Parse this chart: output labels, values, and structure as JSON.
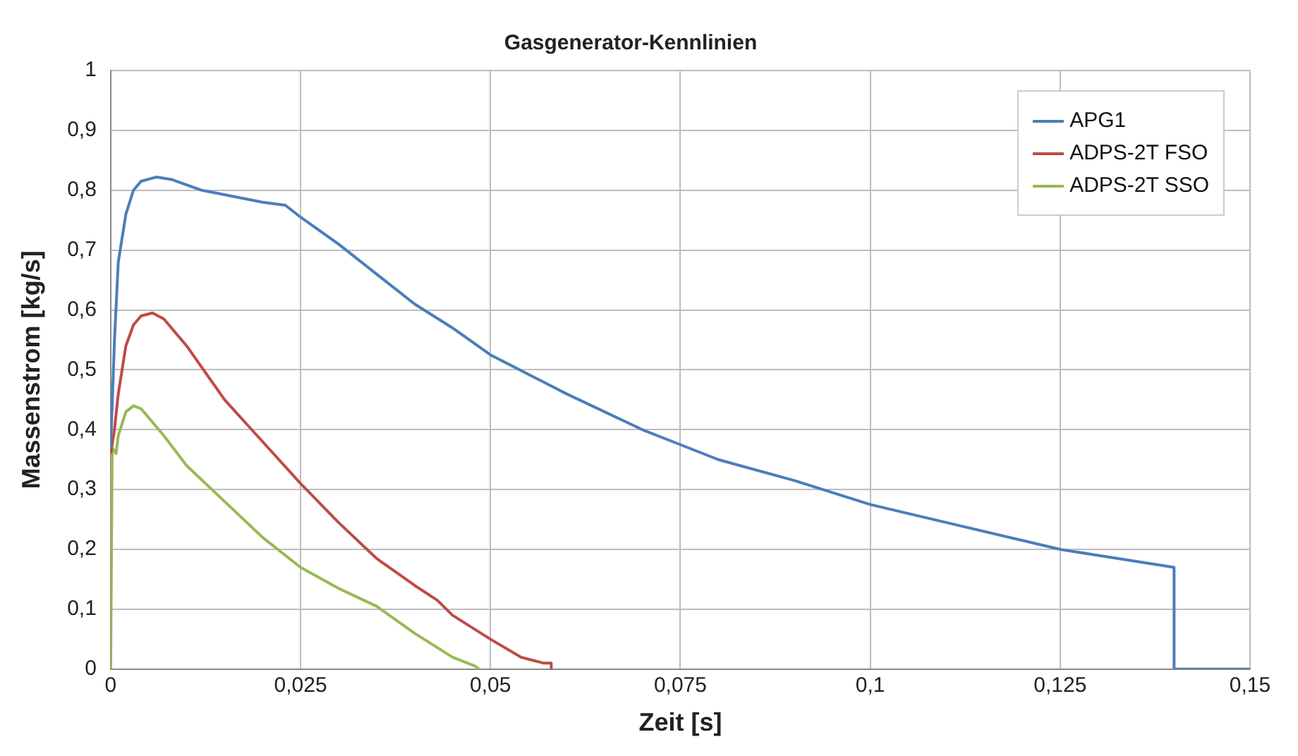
{
  "chart_data": {
    "type": "line",
    "title": "Gasgenerator-Kennlinien",
    "xlabel": "Zeit [s]",
    "ylabel": "Massenstrom [kg/s]",
    "xlim": [
      0,
      0.15
    ],
    "xticks": [
      0,
      {
        "value": 0.025,
        "label": "0,025"
      },
      {
        "value": 0.05,
        "label": "0,05"
      },
      {
        "value": 0.075,
        "label": "0,075"
      },
      {
        "value": 0.1,
        "label": "0,1"
      },
      {
        "value": 0.125,
        "label": "0,125"
      },
      {
        "value": 0.15,
        "label": "0,15"
      }
    ],
    "ylim": [
      0,
      1
    ],
    "yticks": [
      0,
      {
        "value": 0.1,
        "label": "0,1"
      },
      {
        "value": 0.2,
        "label": "0,2"
      },
      {
        "value": 0.3,
        "label": "0,3"
      },
      {
        "value": 0.4,
        "label": "0,4"
      },
      {
        "value": 0.5,
        "label": "0,5"
      },
      {
        "value": 0.6,
        "label": "0,6"
      },
      {
        "value": 0.7,
        "label": "0,7"
      },
      {
        "value": 0.8,
        "label": "0,8"
      },
      {
        "value": 0.9,
        "label": "0,9"
      },
      1
    ],
    "grid": true,
    "legend": "top right",
    "marker": "none",
    "line_style": "solid",
    "series": [
      {
        "name": "APG1",
        "color": "#4a7ebb",
        "x": [
          0,
          0.0005,
          0.001,
          0.002,
          0.003,
          0.004,
          0.006,
          0.008,
          0.012,
          0.016,
          0.02,
          0.023,
          0.025,
          0.03,
          0.035,
          0.04,
          0.045,
          0.05,
          0.06,
          0.07,
          0.075,
          0.08,
          0.09,
          0.1,
          0.11,
          0.12,
          0.125,
          0.13,
          0.14,
          0.14,
          0.15
        ],
        "values": [
          0.37,
          0.55,
          0.68,
          0.76,
          0.8,
          0.815,
          0.822,
          0.818,
          0.8,
          0.79,
          0.78,
          0.775,
          0.755,
          0.71,
          0.66,
          0.61,
          0.57,
          0.525,
          0.46,
          0.4,
          0.375,
          0.35,
          0.315,
          0.275,
          0.245,
          0.215,
          0.2,
          0.19,
          0.17,
          0,
          0
        ]
      },
      {
        "name": "ADPS-2T FSO",
        "color": "#be4b48",
        "x": [
          0,
          0.0005,
          0.001,
          0.002,
          0.003,
          0.004,
          0.0055,
          0.007,
          0.01,
          0.015,
          0.02,
          0.025,
          0.03,
          0.035,
          0.04,
          0.043,
          0.045,
          0.05,
          0.054,
          0.057,
          0.058,
          0.058
        ],
        "values": [
          0.36,
          0.4,
          0.46,
          0.54,
          0.575,
          0.59,
          0.595,
          0.585,
          0.54,
          0.45,
          0.38,
          0.31,
          0.245,
          0.185,
          0.14,
          0.115,
          0.09,
          0.05,
          0.02,
          0.01,
          0.01,
          0
        ]
      },
      {
        "name": "ADPS-2T SSO",
        "color": "#98b954",
        "x": [
          0,
          0.0002,
          0.0007,
          0.001,
          0.002,
          0.003,
          0.004,
          0.007,
          0.01,
          0.015,
          0.02,
          0.025,
          0.03,
          0.035,
          0.04,
          0.045,
          0.048,
          0.0485
        ],
        "values": [
          0,
          0.37,
          0.36,
          0.39,
          0.43,
          0.44,
          0.435,
          0.39,
          0.34,
          0.28,
          0.22,
          0.17,
          0.135,
          0.105,
          0.06,
          0.02,
          0.005,
          0
        ]
      }
    ]
  }
}
